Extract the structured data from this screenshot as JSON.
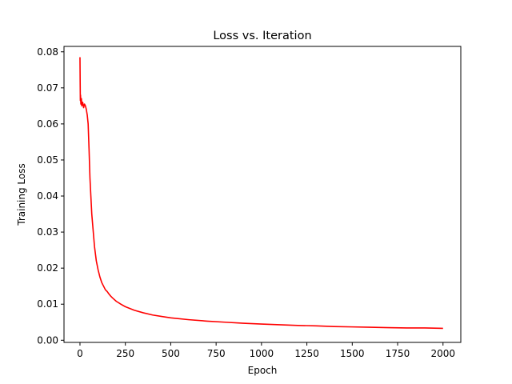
{
  "chart_data": {
    "type": "line",
    "title": "Loss vs. Iteration",
    "xlabel": "Epoch",
    "ylabel": "Training Loss",
    "xlim": [
      -88,
      2098
    ],
    "ylim": [
      -0.0006,
      0.0815
    ],
    "xticks": [
      0,
      250,
      500,
      750,
      1000,
      1250,
      1500,
      1750,
      2000
    ],
    "yticks": [
      0.0,
      0.01,
      0.02,
      0.03,
      0.04,
      0.05,
      0.06,
      0.07,
      0.08
    ],
    "ytick_labels": [
      "0.00",
      "0.01",
      "0.02",
      "0.03",
      "0.04",
      "0.05",
      "0.06",
      "0.07",
      "0.08"
    ],
    "grid": false,
    "series": [
      {
        "color": "#ff0000",
        "x": [
          0,
          1,
          2,
          3,
          5,
          8,
          10,
          15,
          20,
          25,
          30,
          35,
          40,
          45,
          50,
          55,
          60,
          65,
          70,
          75,
          80,
          90,
          100,
          110,
          120,
          130,
          140,
          150,
          160,
          170,
          180,
          200,
          225,
          250,
          275,
          300,
          350,
          400,
          450,
          500,
          600,
          700,
          800,
          900,
          1000,
          1100,
          1200,
          1300,
          1400,
          1500,
          1600,
          1700,
          1800,
          1900,
          2000
        ],
        "y": [
          0.0785,
          0.072,
          0.0665,
          0.068,
          0.0655,
          0.067,
          0.065,
          0.066,
          0.0645,
          0.0655,
          0.065,
          0.064,
          0.0625,
          0.06,
          0.053,
          0.045,
          0.04,
          0.035,
          0.032,
          0.029,
          0.026,
          0.022,
          0.0195,
          0.0175,
          0.016,
          0.015,
          0.014,
          0.0135,
          0.0128,
          0.0122,
          0.0117,
          0.0108,
          0.01,
          0.0093,
          0.0088,
          0.0083,
          0.0076,
          0.007,
          0.0066,
          0.0062,
          0.0057,
          0.0053,
          0.005,
          0.0047,
          0.0045,
          0.0043,
          0.0041,
          0.004,
          0.0038,
          0.0037,
          0.0036,
          0.0035,
          0.0034,
          0.0034,
          0.0033
        ]
      }
    ]
  }
}
